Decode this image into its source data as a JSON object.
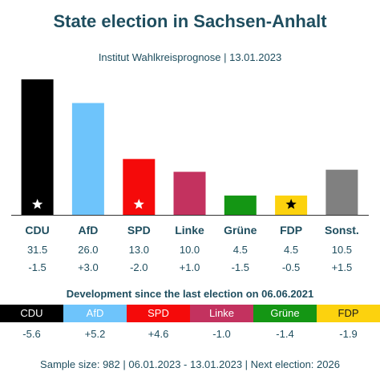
{
  "header": {
    "title": "State election in Sachsen-Anhalt",
    "subtitle": "Institut Wahlkreisprognose | 13.01.2023"
  },
  "chart_data": {
    "type": "bar",
    "categories": [
      "CDU",
      "AfD",
      "SPD",
      "Linke",
      "Grüne",
      "FDP",
      "Sonst."
    ],
    "values": [
      31.5,
      26.0,
      13.0,
      10.0,
      4.5,
      4.5,
      10.5
    ],
    "value_labels": [
      "31.5",
      "26.0",
      "13.0",
      "10.0",
      "4.5",
      "4.5",
      "10.5"
    ],
    "changes": [
      "-1.5",
      "+3.0",
      "-2.0",
      "+1.0",
      "-1.5",
      "-0.5",
      "+1.5"
    ],
    "colors": [
      "#000000",
      "#6ec4fb",
      "#f50a0a",
      "#c3325f",
      "#149614",
      "#fcd20e",
      "#808080"
    ],
    "star_icons": [
      true,
      false,
      true,
      false,
      false,
      true,
      false
    ],
    "ylim": [
      0,
      31.5
    ],
    "grid": false,
    "title": "State election in Sachsen-Anhalt",
    "xlabel": "",
    "ylabel": ""
  },
  "development": {
    "title": "Development since the last election on 06.06.2021",
    "items": [
      {
        "party": "CDU",
        "value": "-5.6",
        "color": "#000000",
        "text_color": "#ffffff"
      },
      {
        "party": "AfD",
        "value": "+5.2",
        "color": "#6ec4fb",
        "text_color": "#ffffff"
      },
      {
        "party": "SPD",
        "value": "+4.6",
        "color": "#f50a0a",
        "text_color": "#ffffff"
      },
      {
        "party": "Linke",
        "value": "-1.0",
        "color": "#c3325f",
        "text_color": "#ffffff"
      },
      {
        "party": "Grüne",
        "value": "-1.4",
        "color": "#149614",
        "text_color": "#ffffff"
      },
      {
        "party": "FDP",
        "value": "-1.9",
        "color": "#fcd20e",
        "text_color": "#1a1a1a"
      }
    ]
  },
  "footer": {
    "text": "Sample size: 982 | 06.01.2023 - 13.01.2023 | Next election: 2026"
  }
}
